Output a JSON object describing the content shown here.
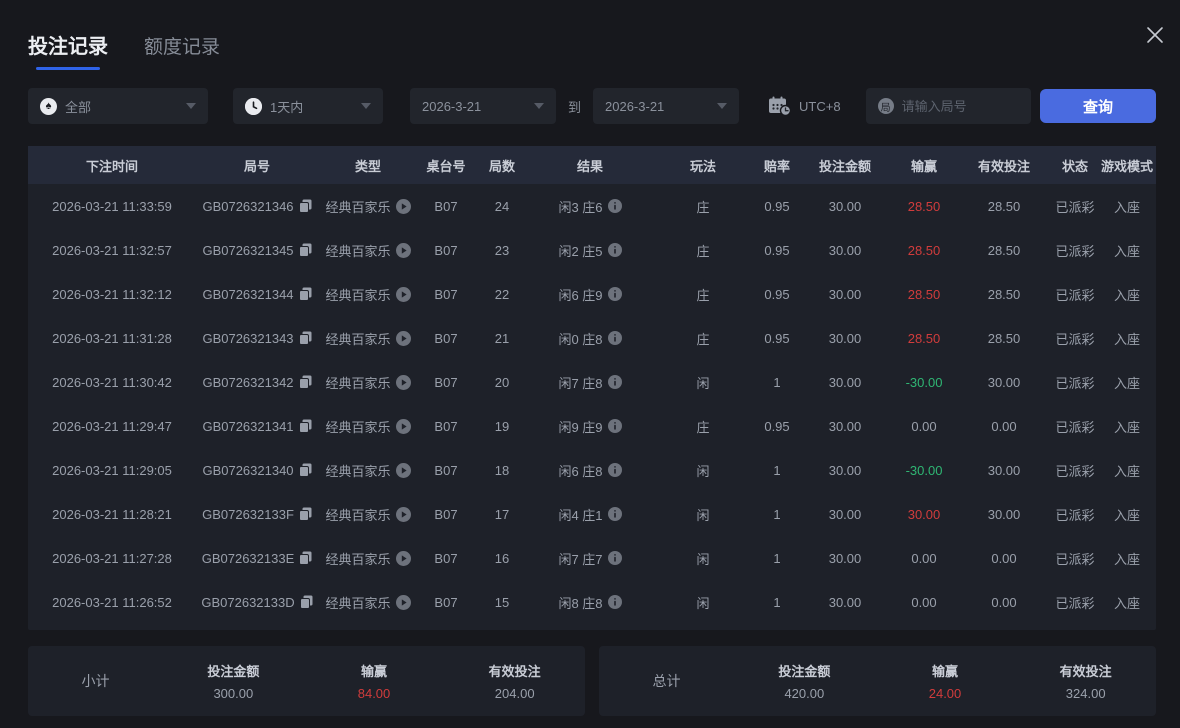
{
  "tabs": {
    "bet_records": "投注记录",
    "quota_records": "额度记录"
  },
  "filters": {
    "game_type": {
      "value": "全部",
      "icon": "spade-icon",
      "icon_glyph": "♠"
    },
    "time_range": {
      "value": "1天内",
      "icon": "clock-icon"
    },
    "date_from": "2026-3-21",
    "to_label": "到",
    "date_to": "2026-3-21",
    "timezone": {
      "label": "UTC+8",
      "icon": "calendar-clock-icon"
    },
    "round_input": {
      "placeholder": "请输入局号",
      "value": "",
      "icon": "round-badge-icon",
      "icon_glyph": "局"
    },
    "query_button": "查询"
  },
  "table": {
    "headers": [
      "下注时间",
      "局号",
      "类型",
      "桌台号",
      "局数",
      "结果",
      "玩法",
      "赔率",
      "投注金额",
      "输赢",
      "有效投注",
      "状态",
      "游戏模式"
    ],
    "rows": [
      {
        "time": "2026-03-21 11:33:59",
        "round_id": "GB0726321346",
        "type": "经典百家乐",
        "table_no": "B07",
        "round": "24",
        "result": "闲3 庄6",
        "play": "庄",
        "odds": "0.95",
        "bet": "30.00",
        "win": "28.50",
        "win_color": "red",
        "valid": "28.50",
        "status": "已派彩",
        "mode": "入座"
      },
      {
        "time": "2026-03-21 11:32:57",
        "round_id": "GB0726321345",
        "type": "经典百家乐",
        "table_no": "B07",
        "round": "23",
        "result": "闲2 庄5",
        "play": "庄",
        "odds": "0.95",
        "bet": "30.00",
        "win": "28.50",
        "win_color": "red",
        "valid": "28.50",
        "status": "已派彩",
        "mode": "入座"
      },
      {
        "time": "2026-03-21 11:32:12",
        "round_id": "GB0726321344",
        "type": "经典百家乐",
        "table_no": "B07",
        "round": "22",
        "result": "闲6 庄9",
        "play": "庄",
        "odds": "0.95",
        "bet": "30.00",
        "win": "28.50",
        "win_color": "red",
        "valid": "28.50",
        "status": "已派彩",
        "mode": "入座"
      },
      {
        "time": "2026-03-21 11:31:28",
        "round_id": "GB0726321343",
        "type": "经典百家乐",
        "table_no": "B07",
        "round": "21",
        "result": "闲0 庄8",
        "play": "庄",
        "odds": "0.95",
        "bet": "30.00",
        "win": "28.50",
        "win_color": "red",
        "valid": "28.50",
        "status": "已派彩",
        "mode": "入座"
      },
      {
        "time": "2026-03-21 11:30:42",
        "round_id": "GB0726321342",
        "type": "经典百家乐",
        "table_no": "B07",
        "round": "20",
        "result": "闲7 庄8",
        "play": "闲",
        "odds": "1",
        "bet": "30.00",
        "win": "-30.00",
        "win_color": "green",
        "valid": "30.00",
        "status": "已派彩",
        "mode": "入座"
      },
      {
        "time": "2026-03-21 11:29:47",
        "round_id": "GB0726321341",
        "type": "经典百家乐",
        "table_no": "B07",
        "round": "19",
        "result": "闲9 庄9",
        "play": "庄",
        "odds": "0.95",
        "bet": "30.00",
        "win": "0.00",
        "win_color": "neutral",
        "valid": "0.00",
        "status": "已派彩",
        "mode": "入座"
      },
      {
        "time": "2026-03-21 11:29:05",
        "round_id": "GB0726321340",
        "type": "经典百家乐",
        "table_no": "B07",
        "round": "18",
        "result": "闲6 庄8",
        "play": "闲",
        "odds": "1",
        "bet": "30.00",
        "win": "-30.00",
        "win_color": "green",
        "valid": "30.00",
        "status": "已派彩",
        "mode": "入座"
      },
      {
        "time": "2026-03-21 11:28:21",
        "round_id": "GB072632133F",
        "type": "经典百家乐",
        "table_no": "B07",
        "round": "17",
        "result": "闲4 庄1",
        "play": "闲",
        "odds": "1",
        "bet": "30.00",
        "win": "30.00",
        "win_color": "red",
        "valid": "30.00",
        "status": "已派彩",
        "mode": "入座"
      },
      {
        "time": "2026-03-21 11:27:28",
        "round_id": "GB072632133E",
        "type": "经典百家乐",
        "table_no": "B07",
        "round": "16",
        "result": "闲7 庄7",
        "play": "闲",
        "odds": "1",
        "bet": "30.00",
        "win": "0.00",
        "win_color": "neutral",
        "valid": "0.00",
        "status": "已派彩",
        "mode": "入座"
      },
      {
        "time": "2026-03-21 11:26:52",
        "round_id": "GB072632133D",
        "type": "经典百家乐",
        "table_no": "B07",
        "round": "15",
        "result": "闲8 庄8",
        "play": "闲",
        "odds": "1",
        "bet": "30.00",
        "win": "0.00",
        "win_color": "neutral",
        "valid": "0.00",
        "status": "已派彩",
        "mode": "入座"
      }
    ],
    "row_icons": [
      "copy-icon",
      "play-icon",
      "info-icon"
    ]
  },
  "subtotal": {
    "label": "小计",
    "bet_label": "投注金额",
    "bet": "300.00",
    "win_label": "输赢",
    "win": "84.00",
    "valid_label": "有效投注",
    "valid": "204.00"
  },
  "total": {
    "label": "总计",
    "bet_label": "投注金额",
    "bet": "420.00",
    "win_label": "输赢",
    "win": "24.00",
    "valid_label": "有效投注",
    "valid": "324.00"
  },
  "colors": {
    "accent_blue": "#4a6be0",
    "tab_underline": "#2f63e8",
    "win_red": "#d13c3c",
    "loss_green": "#2fb673",
    "header_bg": "#252a39",
    "panel_bg": "#1e2129",
    "page_bg": "#17181d"
  }
}
